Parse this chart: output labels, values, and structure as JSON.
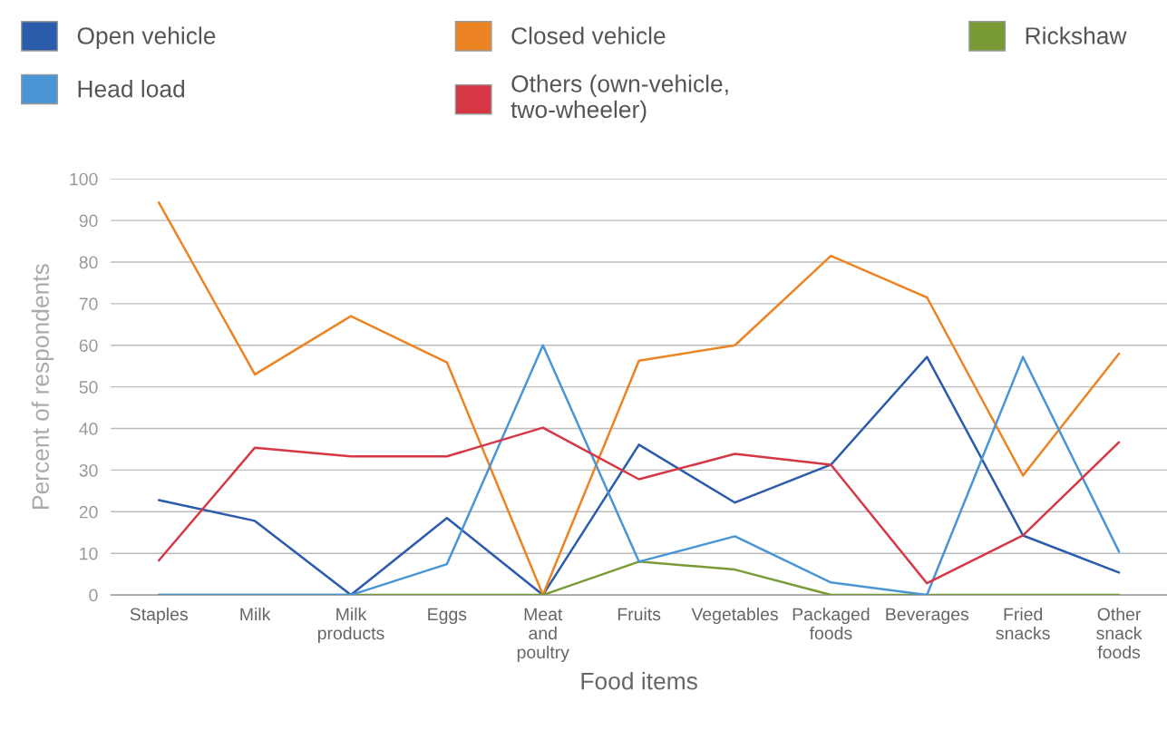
{
  "chart_data": {
    "type": "line",
    "xlabel": "Food items",
    "ylabel": "Percent of respondents",
    "categories": [
      "Staples",
      "Milk",
      "Milk\nproducts",
      "Eggs",
      "Meat\nand\npoultry",
      "Fruits",
      "Vegetables",
      "Packaged\nfoods",
      "Beverages",
      "Fried\nsnacks",
      "Other\nsnack\nfoods"
    ],
    "series": [
      {
        "name": "Open vehicle",
        "color": "#2b5bab",
        "values": [
          22.8,
          17.8,
          0,
          18.5,
          0,
          36.1,
          22.2,
          31.3,
          57.2,
          14.3,
          5.4
        ]
      },
      {
        "name": "Closed vehicle",
        "color": "#ed8423",
        "values": [
          94.3,
          53,
          67,
          55.9,
          0,
          56.3,
          60,
          81.5,
          71.5,
          28.7,
          58
        ]
      },
      {
        "name": "Rickshaw",
        "color": "#7a9a35",
        "values": [
          0,
          0,
          0,
          0,
          0,
          8,
          6.1,
          0,
          0,
          0,
          0
        ]
      },
      {
        "name": "Head load",
        "color": "#4a95d6",
        "values": [
          0,
          0,
          0,
          7.4,
          60,
          8,
          14.1,
          3,
          0,
          57.2,
          10.4
        ]
      },
      {
        "name": "Others (own-vehicle,\ntwo-wheeler)",
        "color": "#d63745",
        "values": [
          8.3,
          35.4,
          33.3,
          33.3,
          40.2,
          27.8,
          33.9,
          31.3,
          2.8,
          14.3,
          36.7
        ]
      }
    ],
    "ylim": [
      0,
      100
    ],
    "yticks": [
      0,
      10,
      20,
      30,
      40,
      50,
      60,
      70,
      80,
      90,
      100
    ],
    "grid": "y",
    "legend": "top",
    "marker": "none",
    "line_style": "solid"
  }
}
